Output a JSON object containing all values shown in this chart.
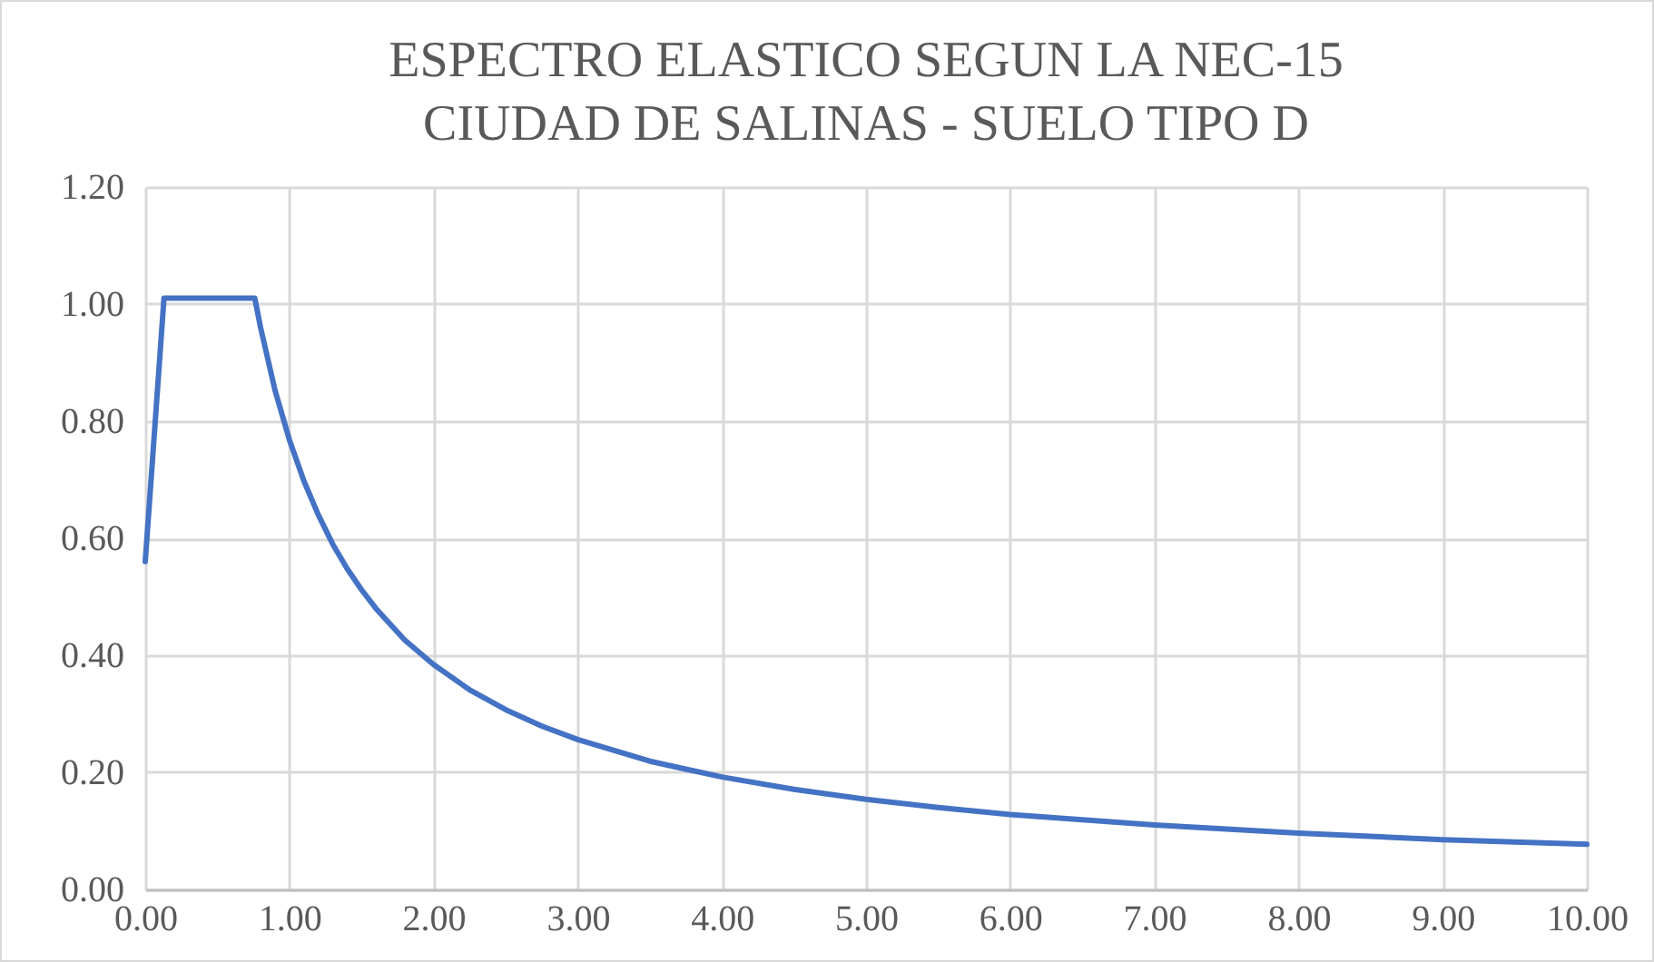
{
  "chart_data": {
    "type": "line",
    "title": "ESPECTRO ELASTICO SEGUN LA NEC-15\nCIUDAD DE SALINAS - SUELO TIPO D",
    "x": [
      0,
      0.13,
      0.76,
      0.8,
      0.9,
      1.0,
      1.1,
      1.2,
      1.3,
      1.4,
      1.5,
      1.6,
      1.8,
      2.0,
      2.25,
      2.5,
      2.75,
      3.0,
      3.5,
      4.0,
      4.5,
      5.0,
      5.5,
      6.0,
      7.0,
      8.0,
      9.0,
      10.0
    ],
    "series": [
      {
        "color": "#4472c4",
        "values": [
          0.56,
          1.01,
          1.01,
          0.96,
          0.853,
          0.768,
          0.698,
          0.64,
          0.59,
          0.548,
          0.512,
          0.48,
          0.426,
          0.384,
          0.341,
          0.307,
          0.279,
          0.256,
          0.219,
          0.192,
          0.171,
          0.154,
          0.14,
          0.128,
          0.11,
          0.096,
          0.085,
          0.077
        ]
      }
    ],
    "xlim": [
      0,
      10
    ],
    "xticks": [
      {
        "value": 0,
        "label": "0.00"
      },
      {
        "value": 1,
        "label": "1.00"
      },
      {
        "value": 2,
        "label": "2.00"
      },
      {
        "value": 3,
        "label": "3.00"
      },
      {
        "value": 4,
        "label": "4.00"
      },
      {
        "value": 5,
        "label": "5.00"
      },
      {
        "value": 6,
        "label": "6.00"
      },
      {
        "value": 7,
        "label": "7.00"
      },
      {
        "value": 8,
        "label": "8.00"
      },
      {
        "value": 9,
        "label": "9.00"
      },
      {
        "value": 10,
        "label": "10.00"
      }
    ],
    "ylim": [
      0,
      1.2
    ],
    "yticks": [
      {
        "value": 0,
        "label": "0.00"
      },
      {
        "value": 0.2,
        "label": "0.20"
      },
      {
        "value": 0.4,
        "label": "0.40"
      },
      {
        "value": 0.6,
        "label": "0.60"
      },
      {
        "value": 0.8,
        "label": "0.80"
      },
      {
        "value": 1.0,
        "label": "1.00"
      },
      {
        "value": 1.2,
        "label": "1.20"
      }
    ],
    "grid": true,
    "legend": false,
    "marker": "none",
    "line_style": "solid"
  }
}
